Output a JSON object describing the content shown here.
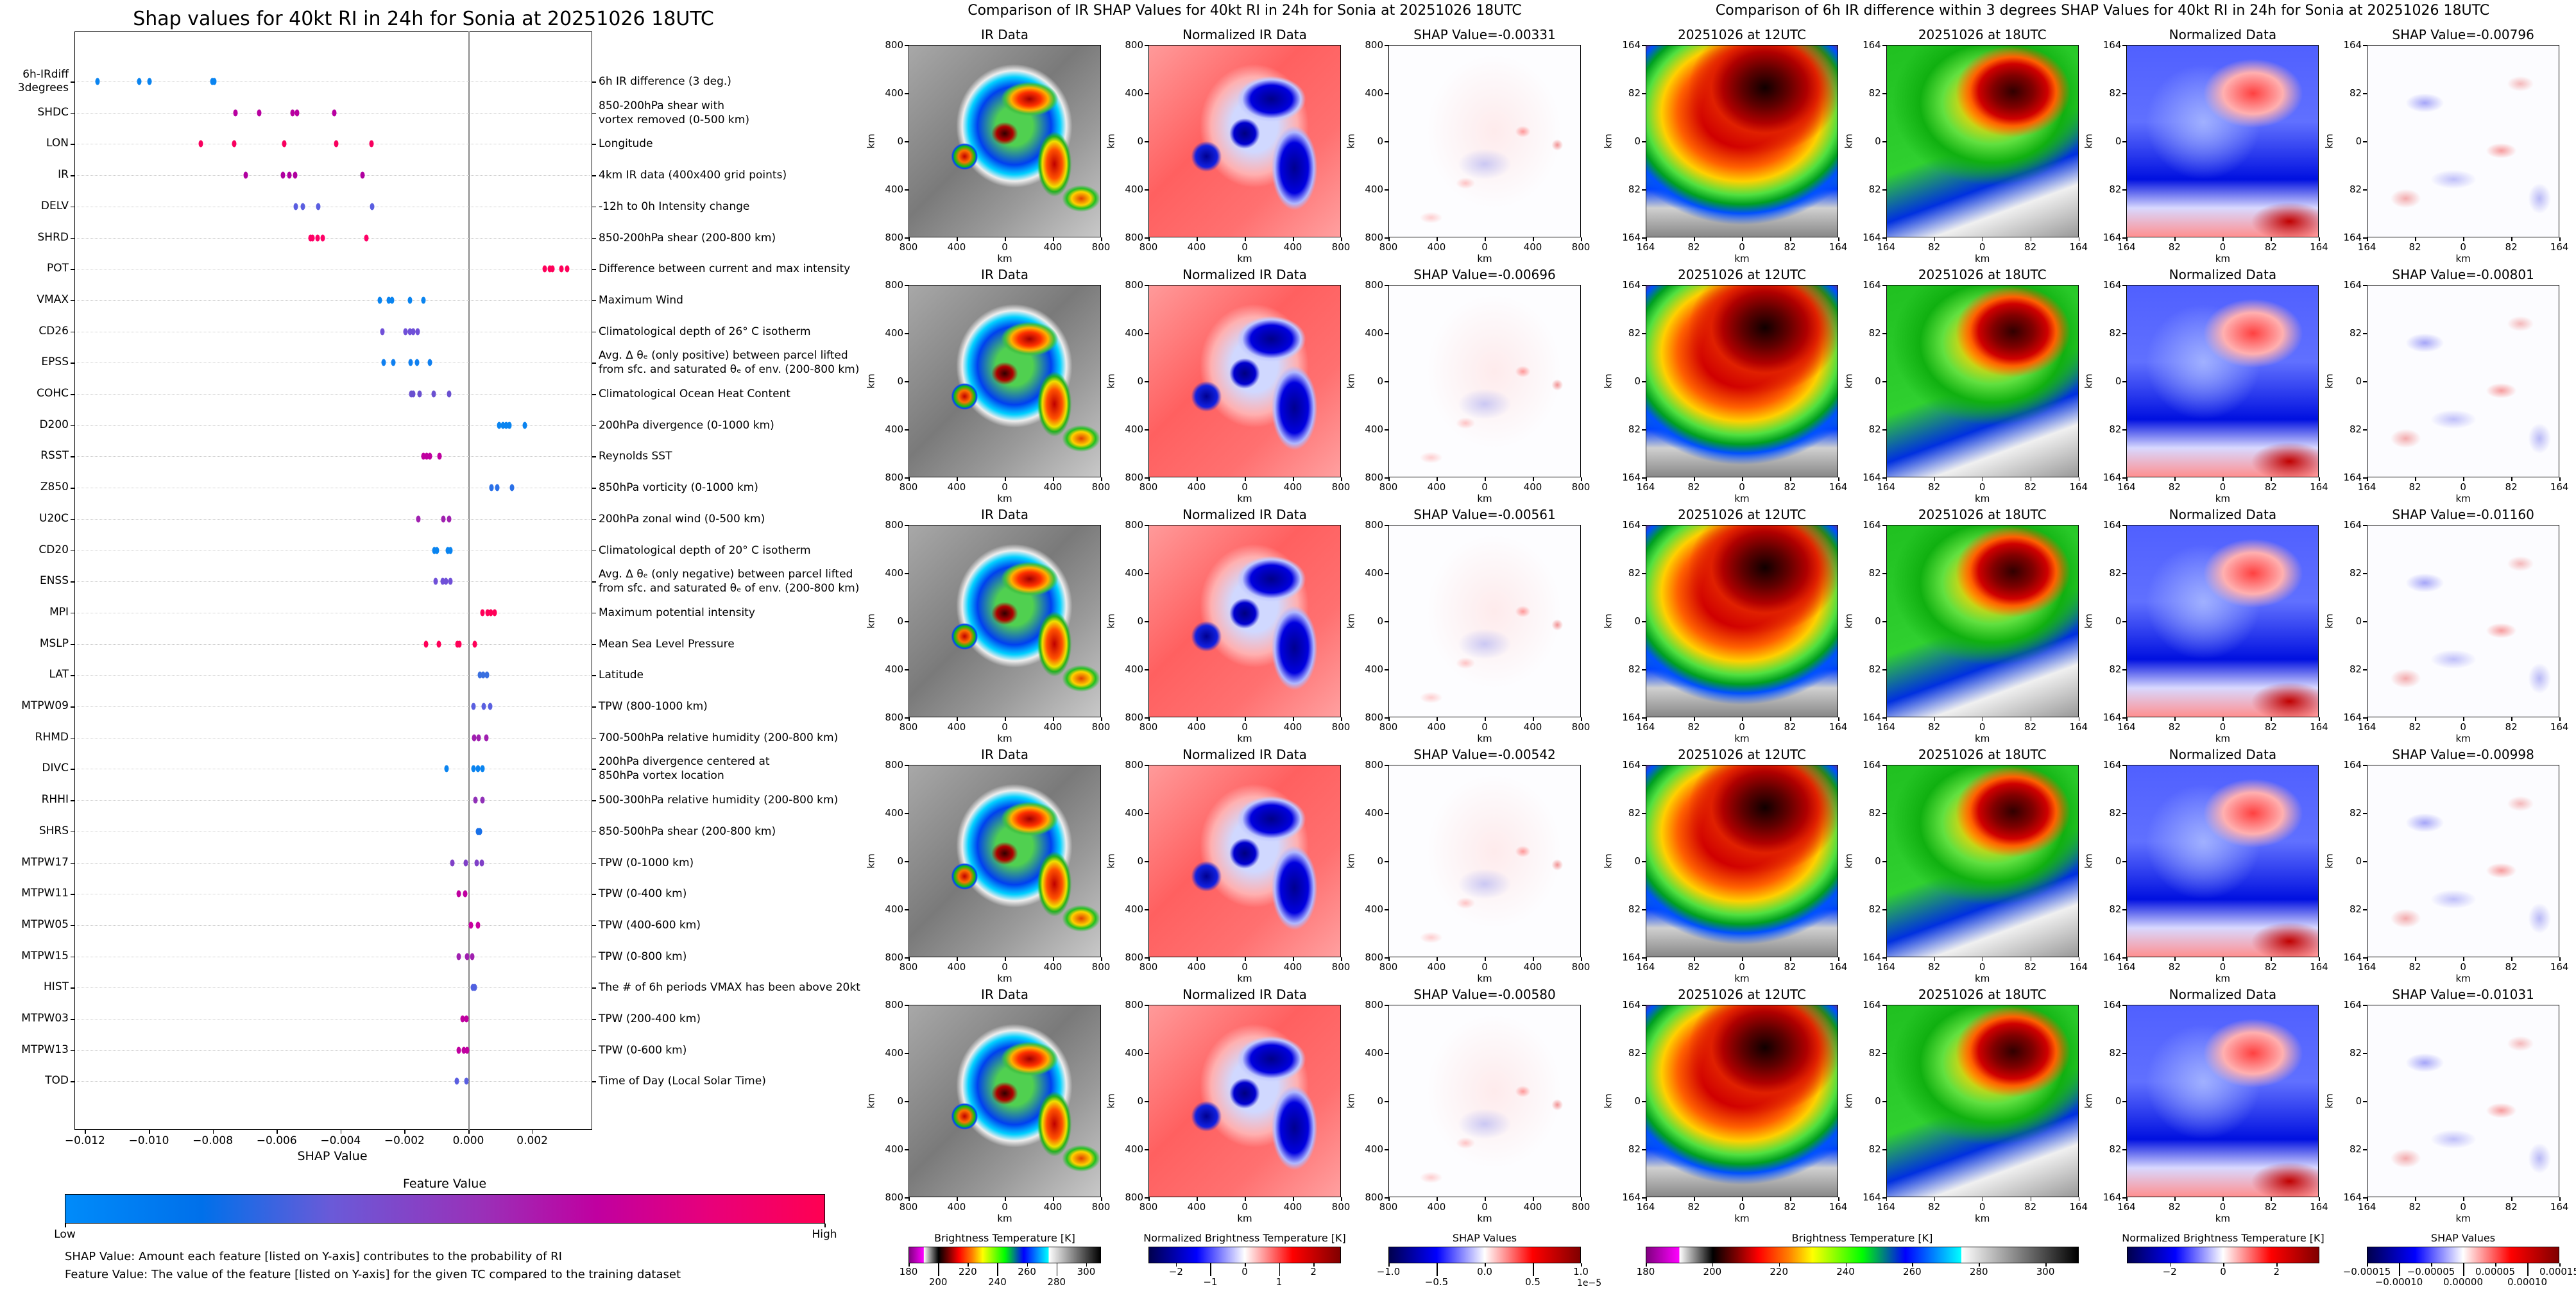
{
  "chart_data": {
    "type": "scatter",
    "title": "Shap values for 40kt RI in 24h for Sonia at 20251026 18UTC",
    "xlabel": "SHAP Value",
    "xlim": [
      -0.01233,
      0.00388
    ],
    "xticks": [
      -0.012,
      -0.01,
      -0.008,
      -0.006,
      -0.004,
      -0.002,
      0.0,
      0.002
    ],
    "xtick_labels": [
      "−0.012",
      "−0.010",
      "−0.008",
      "−0.006",
      "−0.004",
      "−0.002",
      "0.000",
      "0.002"
    ],
    "grid": "dotted horizontal per feature",
    "features": [
      {
        "code": "6h-IRdiff\n3degrees",
        "desc": "6h IR difference (3 deg.)",
        "color": "#0a84f0",
        "values": [
          -0.0116,
          -0.01031,
          -0.00998,
          -0.00801,
          -0.00796
        ]
      },
      {
        "code": "SHDC",
        "desc": "850-200hPa shear with\nvortex removed (0-500 km)",
        "color": "#b800a0",
        "values": [
          -0.00729,
          -0.00654,
          -0.00551,
          -0.00537,
          -0.00419
        ]
      },
      {
        "code": "LON",
        "desc": "Longitude",
        "color": "#f8005e",
        "values": [
          -0.00837,
          -0.00732,
          -0.00577,
          -0.00414,
          -0.00304
        ]
      },
      {
        "code": "IR",
        "desc": "4km IR data (400x400 grid points)",
        "color": "#b000a0",
        "values": [
          -0.00696,
          -0.0058,
          -0.00561,
          -0.00542,
          -0.00331
        ]
      },
      {
        "code": "DELV",
        "desc": "-12h to 0h Intensity change",
        "color": "#5a5ee0",
        "values": [
          -0.00541,
          -0.00518,
          -0.0047,
          -0.00301
        ]
      },
      {
        "code": "SHRD",
        "desc": "850-200hPa shear (200-800 km)",
        "color": "#ff0066",
        "values": [
          -0.00494,
          -0.00487,
          -0.00471,
          -0.00456,
          -0.0032
        ]
      },
      {
        "code": "POT",
        "desc": "Difference between current and max intensity",
        "color": "#ff005a",
        "values": [
          0.00238,
          0.00256,
          0.00264,
          0.00292,
          0.0031
        ]
      },
      {
        "code": "VMAX",
        "desc": "Maximum Wind",
        "color": "#0a84f0",
        "values": [
          -0.00278,
          -0.0025,
          -0.00238,
          -0.00183,
          -0.00141
        ]
      },
      {
        "code": "CD26",
        "desc": "Climatological depth of 26° C isotherm",
        "color": "#7050d8",
        "values": [
          -0.0027,
          -0.00197,
          -0.00183,
          -0.00172,
          -0.00158
        ]
      },
      {
        "code": "EPSS",
        "desc": "Avg. Δ θₑ (only positive) between parcel lifted\nfrom sfc. and saturated θₑ of env. (200-800 km)",
        "color": "#1080f0",
        "values": [
          -0.00266,
          -0.00235,
          -0.00181,
          -0.0016,
          -0.0012
        ]
      },
      {
        "code": "COHC",
        "desc": "Climatological Ocean Heat Content",
        "color": "#6a50d0",
        "values": [
          -0.00179,
          -0.00172,
          -0.00153,
          -0.00108,
          -0.00061
        ]
      },
      {
        "code": "D200",
        "desc": "200hPa divergence (0-1000 km)",
        "color": "#0a84f0",
        "values": [
          0.00097,
          0.00108,
          0.00118,
          0.00129,
          0.00177
        ]
      },
      {
        "code": "RSST",
        "desc": "Reynolds SST",
        "color": "#c000a0",
        "values": [
          -0.00141,
          -0.0013,
          -0.0012,
          -0.0009
        ]
      },
      {
        "code": "Z850",
        "desc": "850hPa vorticity (0-1000 km)",
        "color": "#2a70e8",
        "values": [
          0.00073,
          0.0009,
          0.00137
        ]
      },
      {
        "code": "U20C",
        "desc": "200hPa zonal wind (0-500 km)",
        "color": "#a020b0",
        "values": [
          -0.00157,
          -0.00078,
          -0.00061
        ]
      },
      {
        "code": "CD20",
        "desc": "Climatological depth of 20° C isotherm",
        "color": "#0a84f0",
        "values": [
          -0.00106,
          -0.00099,
          -0.00064,
          -0.00057
        ]
      },
      {
        "code": "ENSS",
        "desc": "Avg. Δ θₑ (only negative) between parcel lifted\nfrom sfc. and saturated θₑ of env. (200-800 km)",
        "color": "#7050d8",
        "values": [
          -0.00103,
          -0.0008,
          -0.0007,
          -0.00056
        ]
      },
      {
        "code": "MPI",
        "desc": "Maximum potential intensity",
        "color": "#ff0058",
        "values": [
          0.00045,
          0.00061,
          0.00071,
          0.00082
        ]
      },
      {
        "code": "MSLP",
        "desc": "Mean Sea Level Pressure",
        "color": "#ff0058",
        "values": [
          -0.00132,
          -0.00092,
          -0.00035,
          -0.00028,
          0.00021
        ]
      },
      {
        "code": "LAT",
        "desc": "Latitude",
        "color": "#3a70e0",
        "values": [
          0.00037,
          0.00047,
          0.00059
        ]
      },
      {
        "code": "MTPW09",
        "desc": "TPW (800-1000 km)",
        "color": "#5a60e0",
        "values": [
          0.00017,
          0.00049,
          0.00068
        ]
      },
      {
        "code": "RHMD",
        "desc": "700-500hPa relative humidity (200-800 km)",
        "color": "#a020b0",
        "values": [
          0.00019,
          0.00033,
          0.00056
        ]
      },
      {
        "code": "DIVC",
        "desc": "200hPa divergence centered at\n850hPa vortex location",
        "color": "#0a84f0",
        "values": [
          -0.00068,
          0.00017,
          0.00031,
          0.00045
        ]
      },
      {
        "code": "RHHI",
        "desc": "500-300hPa relative humidity (200-800 km)",
        "color": "#9030b8",
        "values": [
          0.00023,
          0.00045
        ]
      },
      {
        "code": "SHRS",
        "desc": "850-500hPa shear (200-800 km)",
        "color": "#1870e8",
        "values": [
          0.0003,
          0.00037
        ]
      },
      {
        "code": "MTPW17",
        "desc": "TPW (0-1000 km)",
        "color": "#8040c8",
        "values": [
          -0.0005,
          -9e-05,
          0.00026,
          0.00043
        ]
      },
      {
        "code": "MTPW11",
        "desc": "TPW (0-400 km)",
        "color": "#c000a0",
        "values": [
          -0.0003,
          -0.0001
        ]
      },
      {
        "code": "MTPW05",
        "desc": "TPW (400-600 km)",
        "color": "#c800a0",
        "values": [
          9e-05,
          0.00031
        ]
      },
      {
        "code": "MTPW15",
        "desc": "TPW (0-800 km)",
        "color": "#a020b0",
        "values": [
          -0.0003,
          -5e-05,
          0.00012
        ]
      },
      {
        "code": "HIST",
        "desc": "The # of 6h periods VMAX has been above 20kt",
        "color": "#5060e0",
        "values": [
          0.00014,
          0.00021
        ]
      },
      {
        "code": "MTPW03",
        "desc": "TPW (200-400 km)",
        "color": "#c000a0",
        "values": [
          -0.00019,
          -7e-05
        ]
      },
      {
        "code": "MTPW13",
        "desc": "TPW (0-600 km)",
        "color": "#c000a0",
        "values": [
          -0.00031,
          -0.00014,
          -5e-05
        ]
      },
      {
        "code": "TOD",
        "desc": "Time of Day (Local Solar Time)",
        "color": "#5a5ee0",
        "values": [
          -0.00037,
          -7e-05
        ]
      }
    ],
    "colorbar": {
      "title": "Feature Value",
      "low": "Low",
      "high": "High"
    },
    "notes": [
      "SHAP Value: Amount each feature [listed on Y-axis] contributes to the probability of RI",
      "Feature Value: The value of the feature [listed on Y-axis] for the given TC compared to the training dataset"
    ]
  },
  "middle": {
    "title": "Comparison of IR SHAP Values for 40kt RI in 24h for Sonia at 20251026 18UTC",
    "axis_label": "km",
    "yticks": [
      "800",
      "400",
      "0",
      "400",
      "800"
    ],
    "xticks": [
      "800",
      "400",
      "0",
      "400",
      "800"
    ],
    "kinds": [
      "ir",
      "nir",
      "shap"
    ],
    "rows": [
      [
        "IR Data",
        "Normalized IR Data",
        "SHAP Value=-0.00331"
      ],
      [
        "IR Data",
        "Normalized IR Data",
        "SHAP Value=-0.00696"
      ],
      [
        "IR Data",
        "Normalized IR Data",
        "SHAP Value=-0.00561"
      ],
      [
        "IR Data",
        "Normalized IR Data",
        "SHAP Value=-0.00542"
      ],
      [
        "IR Data",
        "Normalized IR Data",
        "SHAP Value=-0.00580"
      ]
    ],
    "colorbars": [
      {
        "title": "Brightness Temperature [K]",
        "style": "cb-bt",
        "range": [
          180,
          310
        ],
        "ticks": [
          180,
          200,
          220,
          240,
          260,
          280,
          300
        ],
        "labels": [
          "180",
          "200",
          "220",
          "240",
          "260",
          "280",
          "300"
        ],
        "offset": null
      },
      {
        "title": "Normalized Brightness Temperature [K]",
        "style": "cb-sei",
        "range": [
          -2.8,
          2.8
        ],
        "ticks": [
          -2,
          -1,
          0,
          1,
          2
        ],
        "labels": [
          "−2",
          "−1",
          "0",
          "1",
          "2"
        ],
        "offset": null
      },
      {
        "title": "SHAP Values",
        "style": "cb-sei",
        "range": [
          -1,
          1
        ],
        "ticks": [
          -1,
          -0.5,
          0,
          0.5,
          1
        ],
        "labels": [
          "−1.0",
          "−0.5",
          "0.0",
          "0.5",
          "1.0"
        ],
        "offset": "1e−5"
      }
    ]
  },
  "right": {
    "title": "Comparison of 6h IR difference within 3 degrees SHAP Values for 40kt RI in 24h for Sonia at 20251026 18UTC",
    "axis_label": "km",
    "yticks": [
      "164",
      "82",
      "0",
      "82",
      "164"
    ],
    "xticks": [
      "164",
      "82",
      "0",
      "82",
      "164"
    ],
    "kinds": [
      "ir12",
      "ir18",
      "ndata",
      "shap2"
    ],
    "rows": [
      [
        "20251026 at 12UTC",
        "20251026 at 18UTC",
        "Normalized Data",
        "SHAP Value=-0.00796"
      ],
      [
        "20251026 at 12UTC",
        "20251026 at 18UTC",
        "Normalized Data",
        "SHAP Value=-0.00801"
      ],
      [
        "20251026 at 12UTC",
        "20251026 at 18UTC",
        "Normalized Data",
        "SHAP Value=-0.01160"
      ],
      [
        "20251026 at 12UTC",
        "20251026 at 18UTC",
        "Normalized Data",
        "SHAP Value=-0.00998"
      ],
      [
        "20251026 at 12UTC",
        "20251026 at 18UTC",
        "Normalized Data",
        "SHAP Value=-0.01031"
      ]
    ],
    "colorbars": [
      {
        "title": "Brightness Temperature [K]",
        "style": "cb-bt",
        "range": [
          180,
          310
        ],
        "ticks": [
          180,
          200,
          220,
          240,
          260,
          280,
          300
        ],
        "labels": [
          "180",
          "200",
          "220",
          "240",
          "260",
          "280",
          "300"
        ],
        "offset": null
      },
      {
        "title": "Normalized Brightness Temperature [K]",
        "style": "cb-sei",
        "range": [
          -3.6,
          3.6
        ],
        "ticks": [
          -2,
          0,
          2
        ],
        "labels": [
          "−2",
          "0",
          "2"
        ],
        "offset": null
      },
      {
        "title": "SHAP Values",
        "style": "cb-sei",
        "range": [
          -0.00015,
          0.00015
        ],
        "ticks": [
          -0.00015,
          -0.0001,
          -5e-05,
          0,
          5e-05,
          0.0001,
          0.00015
        ],
        "labels": [
          "−0.00015",
          "−0.00010",
          "−0.00005",
          "0.00000",
          "0.00005",
          "0.00010",
          "0.00015"
        ],
        "offset": null
      }
    ]
  }
}
